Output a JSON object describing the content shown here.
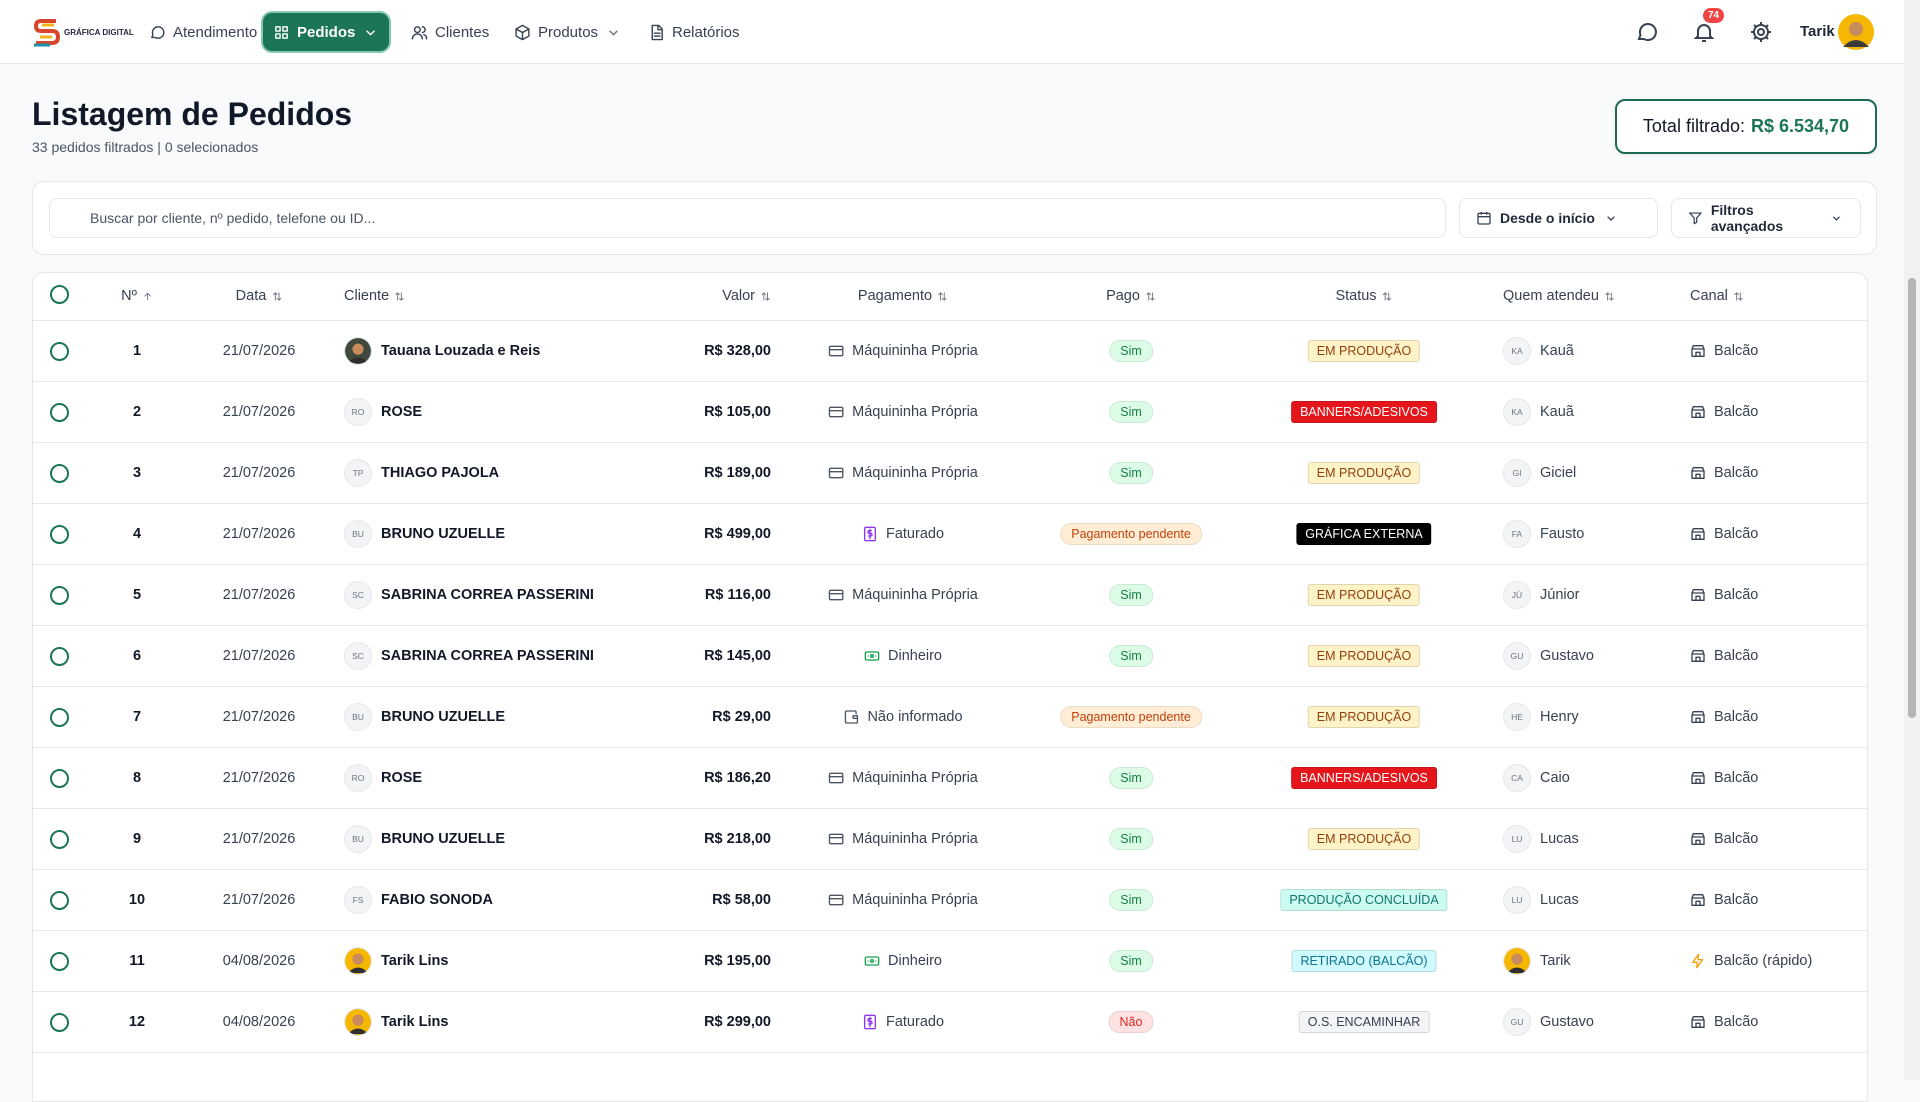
{
  "nav": {
    "brand": "GRÁFICA DIGITAL",
    "items": [
      {
        "label": "Atendimento",
        "icon": "chat",
        "active": false,
        "dropdown": false
      },
      {
        "label": "Pedidos",
        "icon": "grid",
        "active": true,
        "dropdown": true
      },
      {
        "label": "Clientes",
        "icon": "users",
        "active": false,
        "dropdown": false
      },
      {
        "label": "Produtos",
        "icon": "box",
        "active": false,
        "dropdown": true
      },
      {
        "label": "Relatórios",
        "icon": "doc",
        "active": false,
        "dropdown": false
      }
    ],
    "notifications": "74",
    "user": "Tarik"
  },
  "header": {
    "title": "Listagem de Pedidos",
    "subtitle": "33 pedidos filtrados | 0 selecionados",
    "total_label": "Total filtrado:",
    "total_value": "R$ 6.534,70"
  },
  "filters": {
    "search_placeholder": "Buscar por cliente, nº pedido, telefone ou ID...",
    "date": "Desde o início",
    "advanced": "Filtros avançados"
  },
  "table": {
    "columns": [
      {
        "label": "Nº",
        "sort": "asc"
      },
      {
        "label": "Data",
        "sort": "none"
      },
      {
        "label": "Cliente",
        "sort": "none"
      },
      {
        "label": "Valor",
        "sort": "none"
      },
      {
        "label": "Pagamento",
        "sort": "none"
      },
      {
        "label": "Pago",
        "sort": "none"
      },
      {
        "label": "Status",
        "sort": "none"
      },
      {
        "label": "Quem atendeu",
        "sort": "none"
      },
      {
        "label": "Canal",
        "sort": "none"
      }
    ],
    "rows": [
      {
        "num": "1",
        "date": "21/07/2026",
        "client": "Tauana Louzada e Reis",
        "client_avatar_bg": "#3f4a3c",
        "value": "R$ 328,00",
        "payment": "Máquininha Própria",
        "payment_icon": "card",
        "paid": "Sim",
        "paid_bg": "#dcfce7",
        "paid_fg": "#15803d",
        "status": "EM PRODUÇÃO",
        "status_bg": "#fef3c7",
        "status_fg": "#92400e",
        "attendant": "Kauã",
        "attendant_initials": "KA",
        "channel": "Balcão",
        "channel_icon": "store"
      },
      {
        "num": "2",
        "date": "21/07/2026",
        "client": "ROSE",
        "client_initials": "RO",
        "value": "R$ 105,00",
        "payment": "Máquininha Própria",
        "payment_icon": "card",
        "paid": "Sim",
        "paid_bg": "#dcfce7",
        "paid_fg": "#15803d",
        "status": "BANNERS/ADESIVOS",
        "status_bg": "#e5161b",
        "status_fg": "#ffffff",
        "attendant": "Kauã",
        "attendant_initials": "KA",
        "channel": "Balcão",
        "channel_icon": "store"
      },
      {
        "num": "3",
        "date": "21/07/2026",
        "client": "THIAGO PAJOLA",
        "client_initials": "TP",
        "value": "R$ 189,00",
        "payment": "Máquininha Própria",
        "payment_icon": "card",
        "paid": "Sim",
        "paid_bg": "#dcfce7",
        "paid_fg": "#15803d",
        "status": "EM PRODUÇÃO",
        "status_bg": "#fef3c7",
        "status_fg": "#92400e",
        "attendant": "Giciel",
        "attendant_initials": "GI",
        "channel": "Balcão",
        "channel_icon": "store"
      },
      {
        "num": "4",
        "date": "21/07/2026",
        "client": "BRUNO UZUELLE",
        "client_initials": "BU",
        "value": "R$ 499,00",
        "payment": "Faturado",
        "payment_icon": "invoice",
        "paid": "Pagamento pendente",
        "paid_bg": "#ffedd5",
        "paid_fg": "#c2410c",
        "status": "GRÁFICA EXTERNA",
        "status_bg": "#000000",
        "status_fg": "#ffffff",
        "attendant": "Fausto",
        "attendant_initials": "FA",
        "channel": "Balcão",
        "channel_icon": "store"
      },
      {
        "num": "5",
        "date": "21/07/2026",
        "client": "SABRINA CORREA PASSERINI",
        "client_initials": "SC",
        "value": "R$ 116,00",
        "payment": "Máquininha Própria",
        "payment_icon": "card",
        "paid": "Sim",
        "paid_bg": "#dcfce7",
        "paid_fg": "#15803d",
        "status": "EM PRODUÇÃO",
        "status_bg": "#fef3c7",
        "status_fg": "#92400e",
        "attendant": "Júnior",
        "attendant_initials": "JÚ",
        "channel": "Balcão",
        "channel_icon": "store"
      },
      {
        "num": "6",
        "date": "21/07/2026",
        "client": "SABRINA CORREA PASSERINI",
        "client_initials": "SC",
        "value": "R$ 145,00",
        "payment": "Dinheiro",
        "payment_icon": "cash",
        "paid": "Sim",
        "paid_bg": "#dcfce7",
        "paid_fg": "#15803d",
        "status": "EM PRODUÇÃO",
        "status_bg": "#fef3c7",
        "status_fg": "#92400e",
        "attendant": "Gustavo",
        "attendant_initials": "GU",
        "channel": "Balcão",
        "channel_icon": "store"
      },
      {
        "num": "7",
        "date": "21/07/2026",
        "client": "BRUNO UZUELLE",
        "client_initials": "BU",
        "value": "R$ 29,00",
        "payment": "Não informado",
        "payment_icon": "wallet",
        "paid": "Pagamento pendente",
        "paid_bg": "#ffedd5",
        "paid_fg": "#c2410c",
        "status": "EM PRODUÇÃO",
        "status_bg": "#fef3c7",
        "status_fg": "#92400e",
        "attendant": "Henry",
        "attendant_initials": "HE",
        "channel": "Balcão",
        "channel_icon": "store"
      },
      {
        "num": "8",
        "date": "21/07/2026",
        "client": "ROSE",
        "client_initials": "RO",
        "value": "R$ 186,20",
        "payment": "Máquininha Própria",
        "payment_icon": "card",
        "paid": "Sim",
        "paid_bg": "#dcfce7",
        "paid_fg": "#15803d",
        "status": "BANNERS/ADESIVOS",
        "status_bg": "#e5161b",
        "status_fg": "#ffffff",
        "attendant": "Caio",
        "attendant_initials": "CA",
        "channel": "Balcão",
        "channel_icon": "store"
      },
      {
        "num": "9",
        "date": "21/07/2026",
        "client": "BRUNO UZUELLE",
        "client_initials": "BU",
        "value": "R$ 218,00",
        "payment": "Máquininha Própria",
        "payment_icon": "card",
        "paid": "Sim",
        "paid_bg": "#dcfce7",
        "paid_fg": "#15803d",
        "status": "EM PRODUÇÃO",
        "status_bg": "#fef3c7",
        "status_fg": "#92400e",
        "attendant": "Lucas",
        "attendant_initials": "LU",
        "channel": "Balcão",
        "channel_icon": "store"
      },
      {
        "num": "10",
        "date": "21/07/2026",
        "client": "FABIO SONODA",
        "client_initials": "FS",
        "value": "R$ 58,00",
        "payment": "Máquininha Própria",
        "payment_icon": "card",
        "paid": "Sim",
        "paid_bg": "#dcfce7",
        "paid_fg": "#15803d",
        "status": "PRODUÇÃO CONCLUÍDA",
        "status_bg": "#ccfbf1",
        "status_fg": "#0f766e",
        "attendant": "Lucas",
        "attendant_initials": "LU",
        "channel": "Balcão",
        "channel_icon": "store"
      },
      {
        "num": "11",
        "date": "04/08/2026",
        "client": "Tarik Lins",
        "client_avatar_bg": "#f5b700",
        "value": "R$ 195,00",
        "payment": "Dinheiro",
        "payment_icon": "cash",
        "paid": "Sim",
        "paid_bg": "#dcfce7",
        "paid_fg": "#15803d",
        "status": "RETIRADO (BALCÃO)",
        "status_bg": "#cffafe",
        "status_fg": "#0e7490",
        "attendant": "Tarik",
        "attendant_avatar_bg": "#f5b700",
        "channel": "Balcão (rápido)",
        "channel_icon": "bolt"
      },
      {
        "num": "12",
        "date": "04/08/2026",
        "client": "Tarik Lins",
        "client_avatar_bg": "#f5b700",
        "value": "R$ 299,00",
        "payment": "Faturado",
        "payment_icon": "invoice",
        "paid": "Não",
        "paid_bg": "#fee2e2",
        "paid_fg": "#dc2626",
        "status": "O.S. ENCAMINHAR",
        "status_bg": "#f3f4f6",
        "status_fg": "#374151",
        "attendant": "Gustavo",
        "attendant_initials": "GU",
        "channel": "Balcão",
        "channel_icon": "store"
      }
    ]
  }
}
